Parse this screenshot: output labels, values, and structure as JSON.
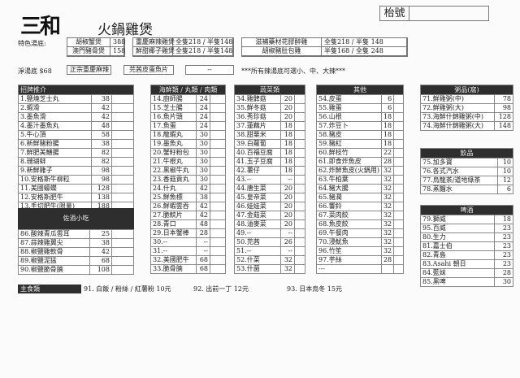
{
  "header": {
    "logo": "三和",
    "title": "火鍋雞煲",
    "table_no_label": "枱號",
    "table_no_value": ""
  },
  "special_soup": {
    "label": "特色湯底:",
    "items": [
      {
        "name": "胡椒蟹煲",
        "price": "388"
      },
      {
        "name": "澳門豬骨煲",
        "price": "158"
      },
      {
        "name": "重慶麻辣雞煲",
        "price": "全隻218 / 半隻148"
      },
      {
        "name": "鮮甜椰子雞煲",
        "price": "全隻218 / 半隻148"
      },
      {
        "name": "滋補藥材花膠醉雞",
        "price": "全隻218 / 半隻 148"
      },
      {
        "name": "胡椒豬肚包雞",
        "price": "半隻168 / 全隻 248"
      }
    ]
  },
  "plain_soup": {
    "label": "淨湯底 $68",
    "options": [
      "正宗重慶麻辣",
      "芫茜皮蛋魚片",
      "--"
    ],
    "note": "***所有辣湯底可選小、中、大辣***"
  },
  "signature": {
    "title": "招牌推介",
    "items": [
      [
        "1.鹽燒芝士丸",
        "38"
      ],
      [
        "2.蝦滑",
        "42"
      ],
      [
        "3.墨魚滑",
        "42"
      ],
      [
        "4.墨汁墨魚丸",
        "48"
      ],
      [
        "5.牛心頂",
        "58"
      ],
      [
        "6.新鮮豬粉腸",
        "38"
      ],
      [
        "7.鮮肥美鱔腸",
        "82"
      ],
      [
        "8.珊瑚蚌",
        "82"
      ],
      [
        "9.新鮮雞子",
        "98"
      ],
      [
        "10.安格斯牛柳粒",
        "98"
      ],
      [
        "11.美國蠔蝶",
        "128"
      ],
      [
        "12.安格斯肥牛",
        "138"
      ],
      [
        "13.手切肥牛(限量)",
        "188"
      ]
    ]
  },
  "snacks": {
    "title": "佐酒小吃",
    "items": [
      [
        "86.酸辣青瓜雲耳",
        "25"
      ],
      [
        "87.蒜辣雞翼尖",
        "38"
      ],
      [
        "88.椒鹽雞軟骨",
        "42"
      ],
      [
        "89.椒鹽泥猛",
        "68"
      ],
      [
        "90.椒鹽脆骨腩",
        "108"
      ]
    ]
  },
  "seafood": {
    "title": "海鮮類 / 丸類 / 肉類",
    "items": [
      [
        "14.廚師腸",
        "24"
      ],
      [
        "15.芝士腸",
        "24"
      ],
      [
        "16.魚片頭",
        "24"
      ],
      [
        "17.魚蛋",
        "24"
      ],
      [
        "18.龍蝦丸",
        "30"
      ],
      [
        "19.墨魚丸",
        "30"
      ],
      [
        "20.蟹籽粉包",
        "30"
      ],
      [
        "21.牛根丸",
        "30"
      ],
      [
        "22.黑椒牛丸",
        "30"
      ],
      [
        "23.香菇貢丸",
        "30"
      ],
      [
        "24.什丸",
        "42"
      ],
      [
        "25.鮮魚標",
        "38"
      ],
      [
        "26.鮮蝦雲吞",
        "42"
      ],
      [
        "27.脆鯇片",
        "42"
      ],
      [
        "28.青口",
        "48"
      ],
      [
        "29.日本蟹棒",
        "28"
      ],
      [
        "30.--",
        "--"
      ],
      [
        "31.--",
        "--"
      ],
      [
        "32.美國肥牛",
        "68"
      ],
      [
        "33.脆骨腩",
        "68"
      ]
    ]
  },
  "vegetables": {
    "title": "蔬菜類",
    "items": [
      [
        "34.雞髀菇",
        "20"
      ],
      [
        "35.鮮冬菇",
        "20"
      ],
      [
        "36.秀珍菇",
        "20"
      ],
      [
        "37.蓮藕片",
        "18"
      ],
      [
        "38.甜粟米",
        "18"
      ],
      [
        "39.白蘿蔔",
        "18"
      ],
      [
        "40.百福豆腐",
        "18"
      ],
      [
        "41.玉子豆腐",
        "18"
      ],
      [
        "42.薯仔",
        "18"
      ],
      [
        "43.--",
        "--"
      ],
      [
        "44.唐生菜",
        "20"
      ],
      [
        "45.皇帝菜",
        "20"
      ],
      [
        "46.娃娃菜",
        "20"
      ],
      [
        "47.金菇菜",
        "20"
      ],
      [
        "48.油麥菜",
        "20"
      ],
      [
        "49.--",
        "--"
      ],
      [
        "50.芫茜",
        "26"
      ],
      [
        "51.--",
        "--"
      ],
      [
        "52.什菜",
        "32"
      ],
      [
        "53.什菌",
        "32"
      ]
    ]
  },
  "others": {
    "title": "其他",
    "items": [
      [
        "54.皮蛋",
        "6"
      ],
      [
        "55.雞蛋",
        "6"
      ],
      [
        "56.山根",
        "18"
      ],
      [
        "57.炸豆卜",
        "18"
      ],
      [
        "58.豬皮",
        "18"
      ],
      [
        "59.豬紅",
        "18"
      ],
      [
        "60.鮮枝竹",
        "22"
      ],
      [
        "61.即食炸魚皮",
        "28"
      ],
      [
        "62.炸鮮魚皮(火鍋用)",
        "32"
      ],
      [
        "63.牛柏葉",
        "32"
      ],
      [
        "64.豬大腸",
        "32"
      ],
      [
        "65.豬潤",
        "32"
      ],
      [
        "66.響鈴",
        "32"
      ],
      [
        "67.菜肉餃",
        "32"
      ],
      [
        "68.魚皮餃",
        "32"
      ],
      [
        "69.午餐肉",
        "32"
      ],
      [
        "70.浸魷魚",
        "32"
      ],
      [
        "96.竹笙",
        "32"
      ],
      [
        "97.芋絲",
        "28"
      ],
      [
        "---",
        ""
      ]
    ]
  },
  "congee": {
    "title": "粥品(窩)",
    "items": [
      [
        "71.鮮雞粥(中)",
        "78"
      ],
      [
        "72.鮮雞粥(大)",
        "98"
      ],
      [
        "73.海鮮什錦雞粥(中)",
        "128"
      ],
      [
        "74.海鮮什錦雞粥(大)",
        "148"
      ]
    ]
  },
  "drinks": {
    "title": "飲品",
    "items": [
      [
        "75.加多寶",
        "10"
      ],
      [
        "76.各式汽水",
        "10"
      ],
      [
        "77.烏龍茶/道地綠茶",
        "12"
      ],
      [
        "78.蒸餾水",
        "6"
      ]
    ]
  },
  "beer": {
    "title": "啤酒",
    "items": [
      [
        "79.獅威",
        "18"
      ],
      [
        "95.百威",
        "23"
      ],
      [
        "80.生力",
        "23"
      ],
      [
        "81.嘉士伯",
        "23"
      ],
      [
        "82.青島",
        "23"
      ],
      [
        "83.Asahi 朝日",
        "23"
      ],
      [
        "84.藍妹",
        "28"
      ],
      [
        "85.黑啤",
        "30"
      ]
    ]
  },
  "staple": {
    "label": "主食類",
    "item91": "91. 白飯 / 粉絲 / 紅薯粉 10元",
    "item92": "92. 出前一丁 12元",
    "item93": "93. 日本烏冬 15元"
  }
}
